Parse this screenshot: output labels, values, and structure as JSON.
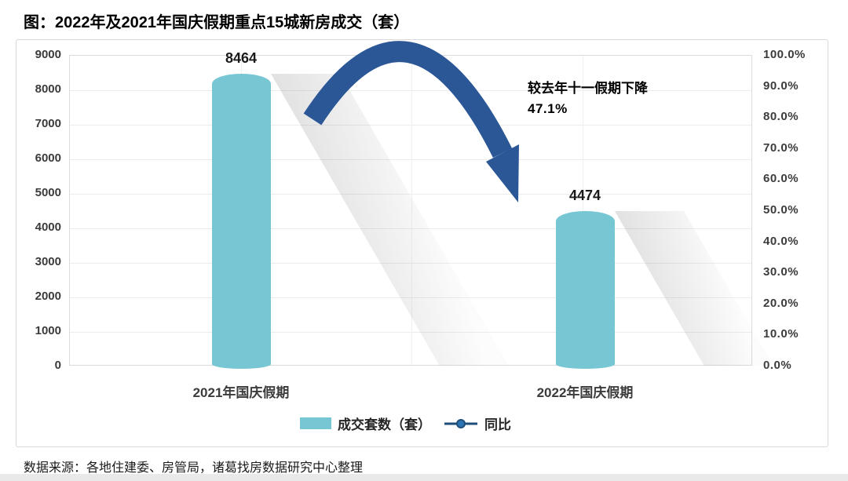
{
  "title": "图：2022年及2021年国庆假期重点15城新房成交（套）",
  "source": "数据来源：各地住建委、房管局，诸葛找房数据研究中心整理",
  "annotation": {
    "line1": "较去年十一假期下降",
    "line2": "47.1%"
  },
  "legend": {
    "series1_label": "成交套数（套）",
    "series2_label": "同比"
  },
  "colors": {
    "bar": "#76c6d4",
    "arrow": "#2b5797",
    "legend_line": "#1f4e79",
    "legend_dot_fill": "#2e75b6",
    "grid": "#ececec",
    "box_border": "#d9d9d9"
  },
  "chart_data": {
    "type": "bar",
    "title": "图：2022年及2021年国庆假期重点15城新房成交（套）",
    "categories": [
      "2021年国庆假期",
      "2022年国庆假期"
    ],
    "series": [
      {
        "name": "成交套数（套）",
        "type": "bar",
        "axis": "left",
        "values": [
          8464,
          4474
        ]
      }
    ],
    "secondary_series": {
      "name": "同比",
      "type": "line",
      "axis": "right",
      "visible_points": false
    },
    "annotation": "较去年十一假期下降 47.1%",
    "left_axis": {
      "min": 0,
      "max": 9000,
      "step": 1000,
      "tick_labels": [
        "9000",
        "8000",
        "7000",
        "6000",
        "5000",
        "4000",
        "3000",
        "2000",
        "1000",
        "0"
      ]
    },
    "right_axis": {
      "min": 0,
      "max": 1,
      "step": 0.1,
      "tick_labels": [
        "100.0%",
        "90.0%",
        "80.0%",
        "70.0%",
        "60.0%",
        "50.0%",
        "40.0%",
        "30.0%",
        "20.0%",
        "10.0%",
        "0.0%"
      ]
    },
    "grid": true,
    "legend_position": "bottom"
  }
}
